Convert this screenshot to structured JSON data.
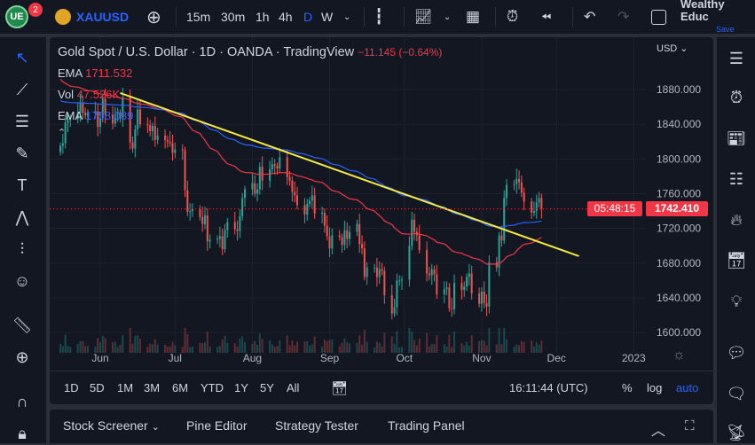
{
  "topbar": {
    "badge_count": "2",
    "symbol": "XAUUSD",
    "timeframes": [
      "15m",
      "30m",
      "1h",
      "4h",
      "D",
      "W"
    ],
    "active_timeframe": "D",
    "account": "Wealthy Educ",
    "save": "Save"
  },
  "chart": {
    "title": "Gold Spot / U.S. Dollar · 1D · OANDA · TradingView",
    "change": "−11.145 (−0.64%)",
    "indicators": [
      {
        "name": "EMA",
        "value": "1711.532",
        "color": "#f23645"
      },
      {
        "name": "Vol",
        "value": "47.526K",
        "color": "#f23645"
      },
      {
        "name": "EMA",
        "value": "1758.039",
        "color": "#2962ff"
      }
    ],
    "currency": "USD",
    "last_price": "1742.410",
    "countdown": "05:48:15",
    "price_ticks": [
      "1880.000",
      "1840.000",
      "1800.000",
      "1760.000",
      "1720.000",
      "1680.000",
      "1640.000",
      "1600.000"
    ],
    "time_ticks": [
      "Jun",
      "Jul",
      "Aug",
      "Sep",
      "Oct",
      "Nov",
      "Dec",
      "2023"
    ],
    "up_color": "#26a69a",
    "down_color": "#ef5350",
    "trendline_color": "#f5e942",
    "trendline": {
      "from": {
        "date": "2022-06-09",
        "price": 1876
      },
      "to": {
        "date": "2022-12-10",
        "price": 1688
      }
    },
    "first_date": "2022-05-16",
    "closes": [
      1815,
      1818,
      1842,
      1845,
      1846,
      1853,
      1865,
      1853,
      1850,
      1853,
      1855,
      1837,
      1847,
      1869,
      1851,
      1841,
      1852,
      1853,
      1848,
      1871,
      1819,
      1812,
      1834,
      1857,
      1840,
      1839,
      1832,
      1838,
      1822,
      1827,
      1822,
      1820,
      1818,
      1807,
      1811,
      1810,
      1764,
      1739,
      1740,
      1742,
      1733,
      1725,
      1735,
      1705,
      1707,
      1708,
      1711,
      1696,
      1718,
      1727,
      1719,
      1717,
      1734,
      1755,
      1765,
      1772,
      1760,
      1765,
      1791,
      1775,
      1788,
      1794,
      1792,
      1789,
      1802,
      1779,
      1775,
      1762,
      1758,
      1747,
      1736,
      1748,
      1752,
      1758,
      1737,
      1738,
      1723,
      1711,
      1697,
      1712,
      1710,
      1701,
      1718,
      1708,
      1716,
      1725,
      1702,
      1697,
      1664,
      1675,
      1675,
      1664,
      1673,
      1671,
      1643,
      1622,
      1629,
      1660,
      1660,
      1661,
      1700,
      1730,
      1716,
      1712,
      1695,
      1668,
      1666,
      1673,
      1667,
      1644,
      1650,
      1652,
      1628,
      1627,
      1657,
      1649,
      1653,
      1664,
      1668,
      1645,
      1633,
      1647,
      1634,
      1630,
      1681,
      1675,
      1712,
      1706,
      1755,
      1770,
      1771,
      1777,
      1773,
      1761,
      1751,
      1738,
      1740,
      1750,
      1755,
      1742.41
    ]
  },
  "range": {
    "buttons": [
      "1D",
      "5D",
      "1M",
      "3M",
      "6M",
      "YTD",
      "1Y",
      "5Y",
      "All"
    ],
    "time": "16:11:44 (UTC)",
    "pct": "%",
    "log": "log",
    "auto": "auto"
  },
  "bottom": {
    "tabs": [
      "Stock Screener",
      "Pine Editor",
      "Strategy Tester",
      "Trading Panel"
    ]
  }
}
